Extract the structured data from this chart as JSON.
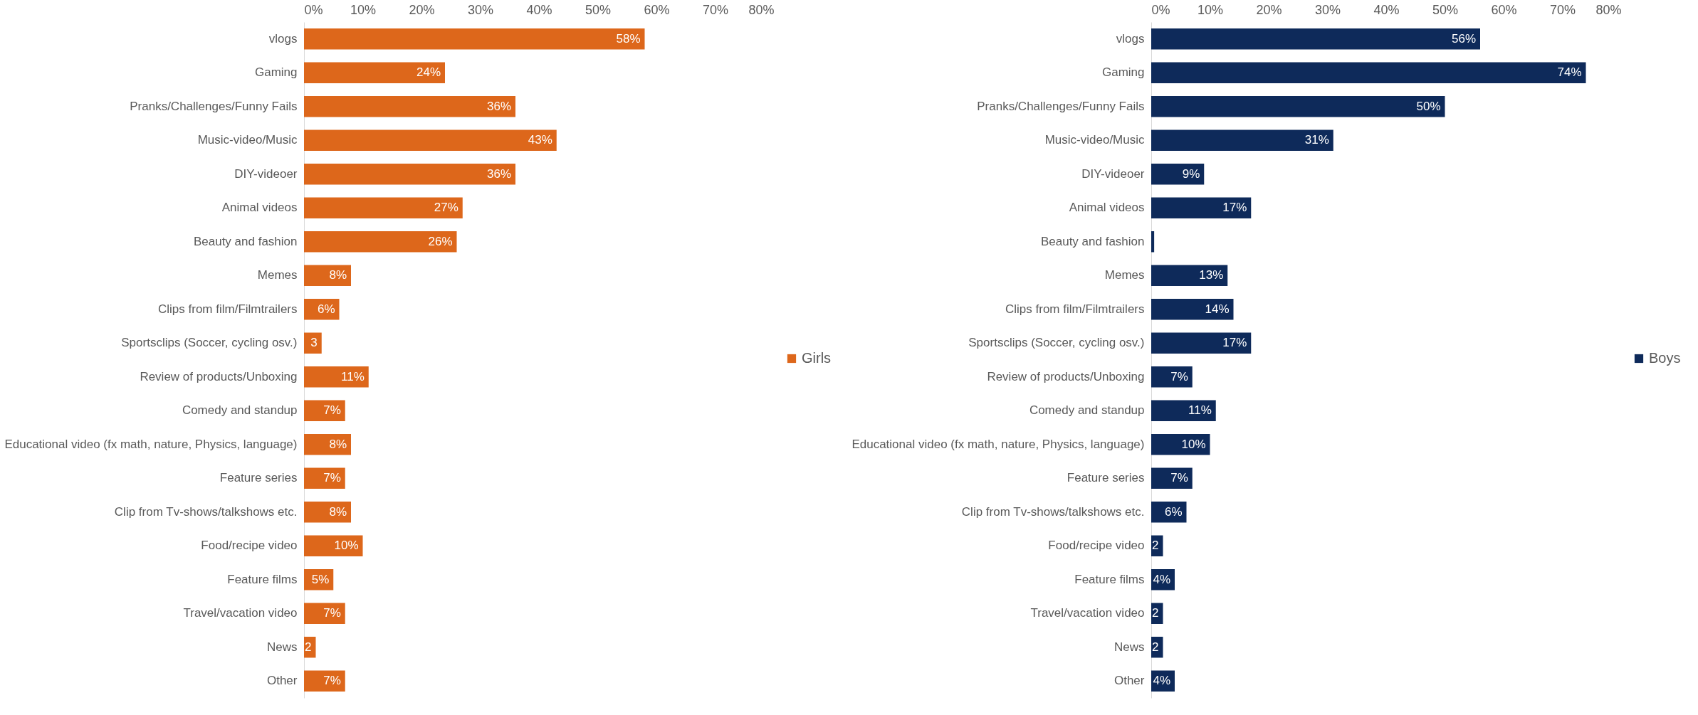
{
  "chart_data": [
    {
      "type": "bar",
      "orientation": "horizontal",
      "categories": [
        "vlogs",
        "Gaming",
        "Pranks/Challenges/Funny Fails",
        "Music-video/Music",
        "DIY-videoer",
        "Animal videos",
        "Beauty and fashion",
        "Memes",
        "Clips from film/Filmtrailers",
        "Sportsclips (Soccer, cycling osv.)",
        "Review of products/Unboxing",
        "Comedy and standup",
        "Educational video (fx math, nature, Physics, language)",
        "Feature series",
        "Clip from Tv-shows/talkshows etc.",
        "Food/recipe video",
        "Feature films",
        "Travel/vacation video",
        "News",
        "Other"
      ],
      "series": [
        {
          "name": "Girls",
          "color": "#dd671b",
          "values": [
            58,
            24,
            36,
            43,
            36,
            27,
            26,
            8,
            6,
            3,
            11,
            7,
            8,
            7,
            8,
            10,
            5,
            7,
            2,
            7
          ],
          "value_labels": [
            "58%",
            "24%",
            "36%",
            "43%",
            "36%",
            "27%",
            "26%",
            "8%",
            "6%",
            "3",
            "11%",
            "7%",
            "8%",
            "7%",
            "8%",
            "10%",
            "5%",
            "7%",
            "2",
            "7%"
          ]
        }
      ],
      "xlim": [
        0,
        80
      ],
      "xticks": [
        {
          "value": 0,
          "label": "0%"
        },
        {
          "value": 10,
          "label": "10%"
        },
        {
          "value": 20,
          "label": "20%"
        },
        {
          "value": 30,
          "label": "30%"
        },
        {
          "value": 40,
          "label": "40%"
        },
        {
          "value": 50,
          "label": "50%"
        },
        {
          "value": 60,
          "label": "60%"
        },
        {
          "value": 70,
          "label": "70%"
        },
        {
          "value": 80,
          "label": "80%"
        }
      ],
      "legend": "right"
    },
    {
      "type": "bar",
      "orientation": "horizontal",
      "categories": [
        "vlogs",
        "Gaming",
        "Pranks/Challenges/Funny Fails",
        "Music-video/Music",
        "DIY-videoer",
        "Animal videos",
        "Beauty and fashion",
        "Memes",
        "Clips from film/Filmtrailers",
        "Sportsclips (Soccer, cycling osv.)",
        "Review of products/Unboxing",
        "Comedy and standup",
        "Educational video (fx math, nature, Physics, language)",
        "Feature series",
        "Clip from Tv-shows/talkshows etc.",
        "Food/recipe video",
        "Feature films",
        "Travel/vacation video",
        "News",
        "Other"
      ],
      "series": [
        {
          "name": "Boys",
          "color": "#0e2a5a",
          "values": [
            56,
            74,
            50,
            31,
            9,
            17,
            0.5,
            13,
            14,
            17,
            7,
            11,
            10,
            7,
            6,
            2,
            4,
            2,
            2,
            4
          ],
          "value_labels": [
            "56%",
            "74%",
            "50%",
            "31%",
            "9%",
            "17%",
            null,
            "13%",
            "14%",
            "17%",
            "7%",
            "11%",
            "10%",
            "7%",
            "6%",
            "2",
            "4%",
            "2",
            "2",
            "4%"
          ]
        }
      ],
      "xlim": [
        0,
        80
      ],
      "xticks": [
        {
          "value": 0,
          "label": "0%"
        },
        {
          "value": 10,
          "label": "10%"
        },
        {
          "value": 20,
          "label": "20%"
        },
        {
          "value": 30,
          "label": "30%"
        },
        {
          "value": 40,
          "label": "40%"
        },
        {
          "value": 50,
          "label": "50%"
        },
        {
          "value": 60,
          "label": "60%"
        },
        {
          "value": 70,
          "label": "70%"
        },
        {
          "value": 80,
          "label": "80%"
        }
      ],
      "legend": "right"
    }
  ]
}
